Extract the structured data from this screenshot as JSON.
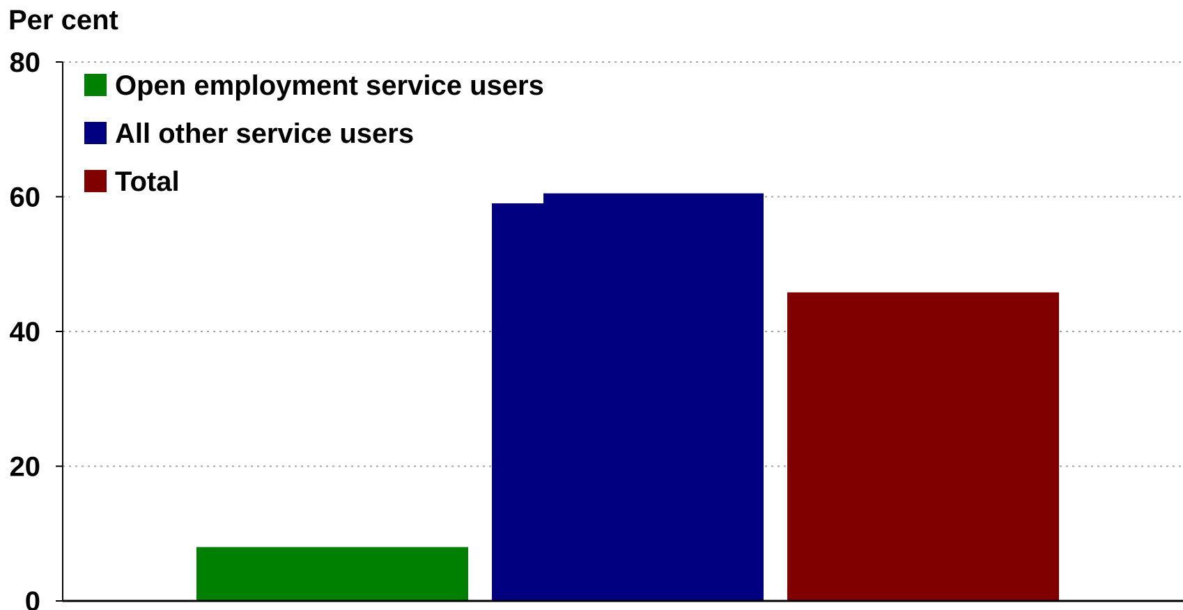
{
  "chart_data": {
    "type": "bar",
    "ylabel": "Per cent",
    "ylim": [
      0,
      80
    ],
    "yticks": [
      0,
      20,
      40,
      60,
      80
    ],
    "grid": true,
    "legend_position": "top-left",
    "series": [
      {
        "name": "Open employment service users",
        "value": 8,
        "color": "#008000"
      },
      {
        "name": "All other service users",
        "value": 60.5,
        "color": "#000080"
      },
      {
        "name": "Total",
        "value": 45.8,
        "color": "#800000"
      }
    ]
  }
}
